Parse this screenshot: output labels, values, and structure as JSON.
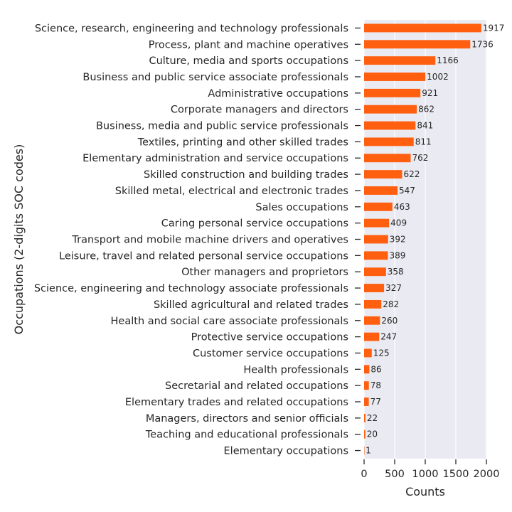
{
  "colors": {
    "bar": "#ff5f0f",
    "plot_background": "#eaeaf2",
    "grid": "#ffffff",
    "text": "#262626"
  },
  "chart_data": {
    "type": "bar",
    "orientation": "horizontal",
    "xlabel": "Counts",
    "ylabel": "Occupations (2-digits SOC codes)",
    "xlim": [
      0,
      2000
    ],
    "xticks": [
      0,
      500,
      1000,
      1500,
      2000
    ],
    "grid": true,
    "data_labels": true,
    "categories": [
      "Science, research, engineering and technology professionals",
      "Process, plant and machine operatives",
      "Culture, media and sports occupations",
      "Business and public service associate professionals",
      "Administrative occupations",
      "Corporate managers and directors",
      "Business, media and public service professionals",
      "Textiles, printing and other skilled trades",
      "Elementary administration and service occupations",
      "Skilled construction and building trades",
      "Skilled metal, electrical and electronic trades",
      "Sales occupations",
      "Caring personal service occupations",
      "Transport and mobile machine drivers and operatives",
      "Leisure, travel and related personal service occupations",
      "Other managers and proprietors",
      "Science, engineering and technology associate professionals",
      "Skilled agricultural and related trades",
      "Health and social care associate professionals",
      "Protective service occupations",
      "Customer service occupations",
      "Health professionals",
      "Secretarial and related occupations",
      "Elementary trades and related occupations",
      "Managers, directors and senior officials",
      "Teaching and educational professionals",
      "Elementary occupations"
    ],
    "values": [
      1917,
      1736,
      1166,
      1002,
      921,
      862,
      841,
      811,
      762,
      622,
      547,
      463,
      409,
      392,
      389,
      358,
      327,
      282,
      260,
      247,
      125,
      86,
      78,
      77,
      22,
      20,
      1
    ]
  }
}
